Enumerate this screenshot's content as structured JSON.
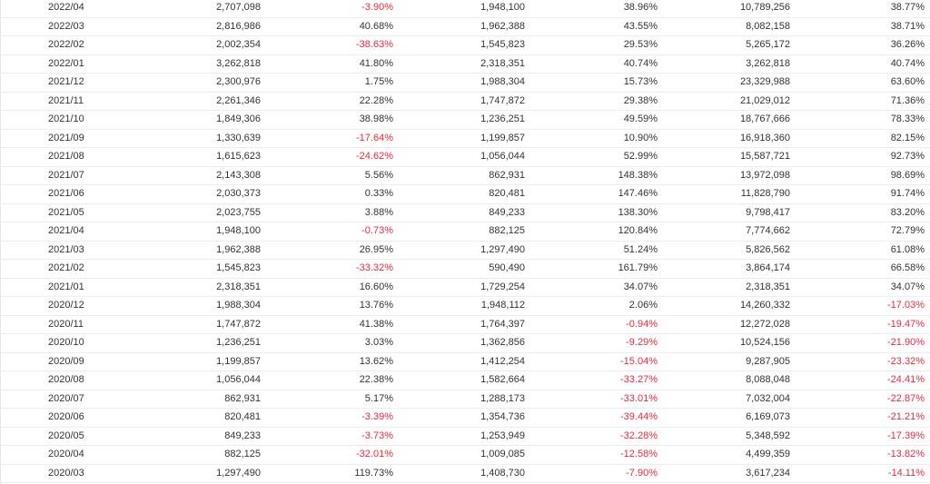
{
  "table": {
    "rows": [
      [
        "2022/04",
        "2,707,098",
        "-3.90%",
        "1,948,100",
        "38.96%",
        "10,789,256",
        "38.77%"
      ],
      [
        "2022/03",
        "2,816,986",
        "40.68%",
        "1,962,388",
        "43.55%",
        "8,082,158",
        "38.71%"
      ],
      [
        "2022/02",
        "2,002,354",
        "-38.63%",
        "1,545,823",
        "29.53%",
        "5,265,172",
        "36.26%"
      ],
      [
        "2022/01",
        "3,262,818",
        "41.80%",
        "2,318,351",
        "40.74%",
        "3,262,818",
        "40.74%"
      ],
      [
        "2021/12",
        "2,300,976",
        "1.75%",
        "1,988,304",
        "15.73%",
        "23,329,988",
        "63.60%"
      ],
      [
        "2021/11",
        "2,261,346",
        "22.28%",
        "1,747,872",
        "29.38%",
        "21,029,012",
        "71.36%"
      ],
      [
        "2021/10",
        "1,849,306",
        "38.98%",
        "1,236,251",
        "49.59%",
        "18,767,666",
        "78.33%"
      ],
      [
        "2021/09",
        "1,330,639",
        "-17.64%",
        "1,199,857",
        "10.90%",
        "16,918,360",
        "82.15%"
      ],
      [
        "2021/08",
        "1,615,623",
        "-24.62%",
        "1,056,044",
        "52.99%",
        "15,587,721",
        "92.73%"
      ],
      [
        "2021/07",
        "2,143,308",
        "5.56%",
        "862,931",
        "148.38%",
        "13,972,098",
        "98.69%"
      ],
      [
        "2021/06",
        "2,030,373",
        "0.33%",
        "820,481",
        "147.46%",
        "11,828,790",
        "91.74%"
      ],
      [
        "2021/05",
        "2,023,755",
        "3.88%",
        "849,233",
        "138.30%",
        "9,798,417",
        "83.20%"
      ],
      [
        "2021/04",
        "1,948,100",
        "-0.73%",
        "882,125",
        "120.84%",
        "7,774,662",
        "72.79%"
      ],
      [
        "2021/03",
        "1,962,388",
        "26.95%",
        "1,297,490",
        "51.24%",
        "5,826,562",
        "61.08%"
      ],
      [
        "2021/02",
        "1,545,823",
        "-33.32%",
        "590,490",
        "161.79%",
        "3,864,174",
        "66.58%"
      ],
      [
        "2021/01",
        "2,318,351",
        "16.60%",
        "1,729,254",
        "34.07%",
        "2,318,351",
        "34.07%"
      ],
      [
        "2020/12",
        "1,988,304",
        "13.76%",
        "1,948,112",
        "2.06%",
        "14,260,332",
        "-17.03%"
      ],
      [
        "2020/11",
        "1,747,872",
        "41.38%",
        "1,764,397",
        "-0.94%",
        "12,272,028",
        "-19.47%"
      ],
      [
        "2020/10",
        "1,236,251",
        "3.03%",
        "1,362,856",
        "-9.29%",
        "10,524,156",
        "-21.90%"
      ],
      [
        "2020/09",
        "1,199,857",
        "13.62%",
        "1,412,254",
        "-15.04%",
        "9,287,905",
        "-23.32%"
      ],
      [
        "2020/08",
        "1,056,044",
        "22.38%",
        "1,582,664",
        "-33.27%",
        "8,088,048",
        "-24.41%"
      ],
      [
        "2020/07",
        "862,931",
        "5.17%",
        "1,288,173",
        "-33.01%",
        "7,032,004",
        "-22.87%"
      ],
      [
        "2020/06",
        "820,481",
        "-3.39%",
        "1,354,736",
        "-39.44%",
        "6,169,073",
        "-21.21%"
      ],
      [
        "2020/05",
        "849,233",
        "-3.73%",
        "1,253,949",
        "-32.28%",
        "5,348,592",
        "-17.39%"
      ],
      [
        "2020/04",
        "882,125",
        "-32.01%",
        "1,009,085",
        "-12.58%",
        "4,499,359",
        "-13.82%"
      ],
      [
        "2020/03",
        "1,297,490",
        "119.73%",
        "1,408,730",
        "-7.90%",
        "3,617,234",
        "-14.11%"
      ]
    ]
  },
  "colors": {
    "text": "#333333",
    "negative": "#f0283c",
    "row_border": "#ececec"
  }
}
